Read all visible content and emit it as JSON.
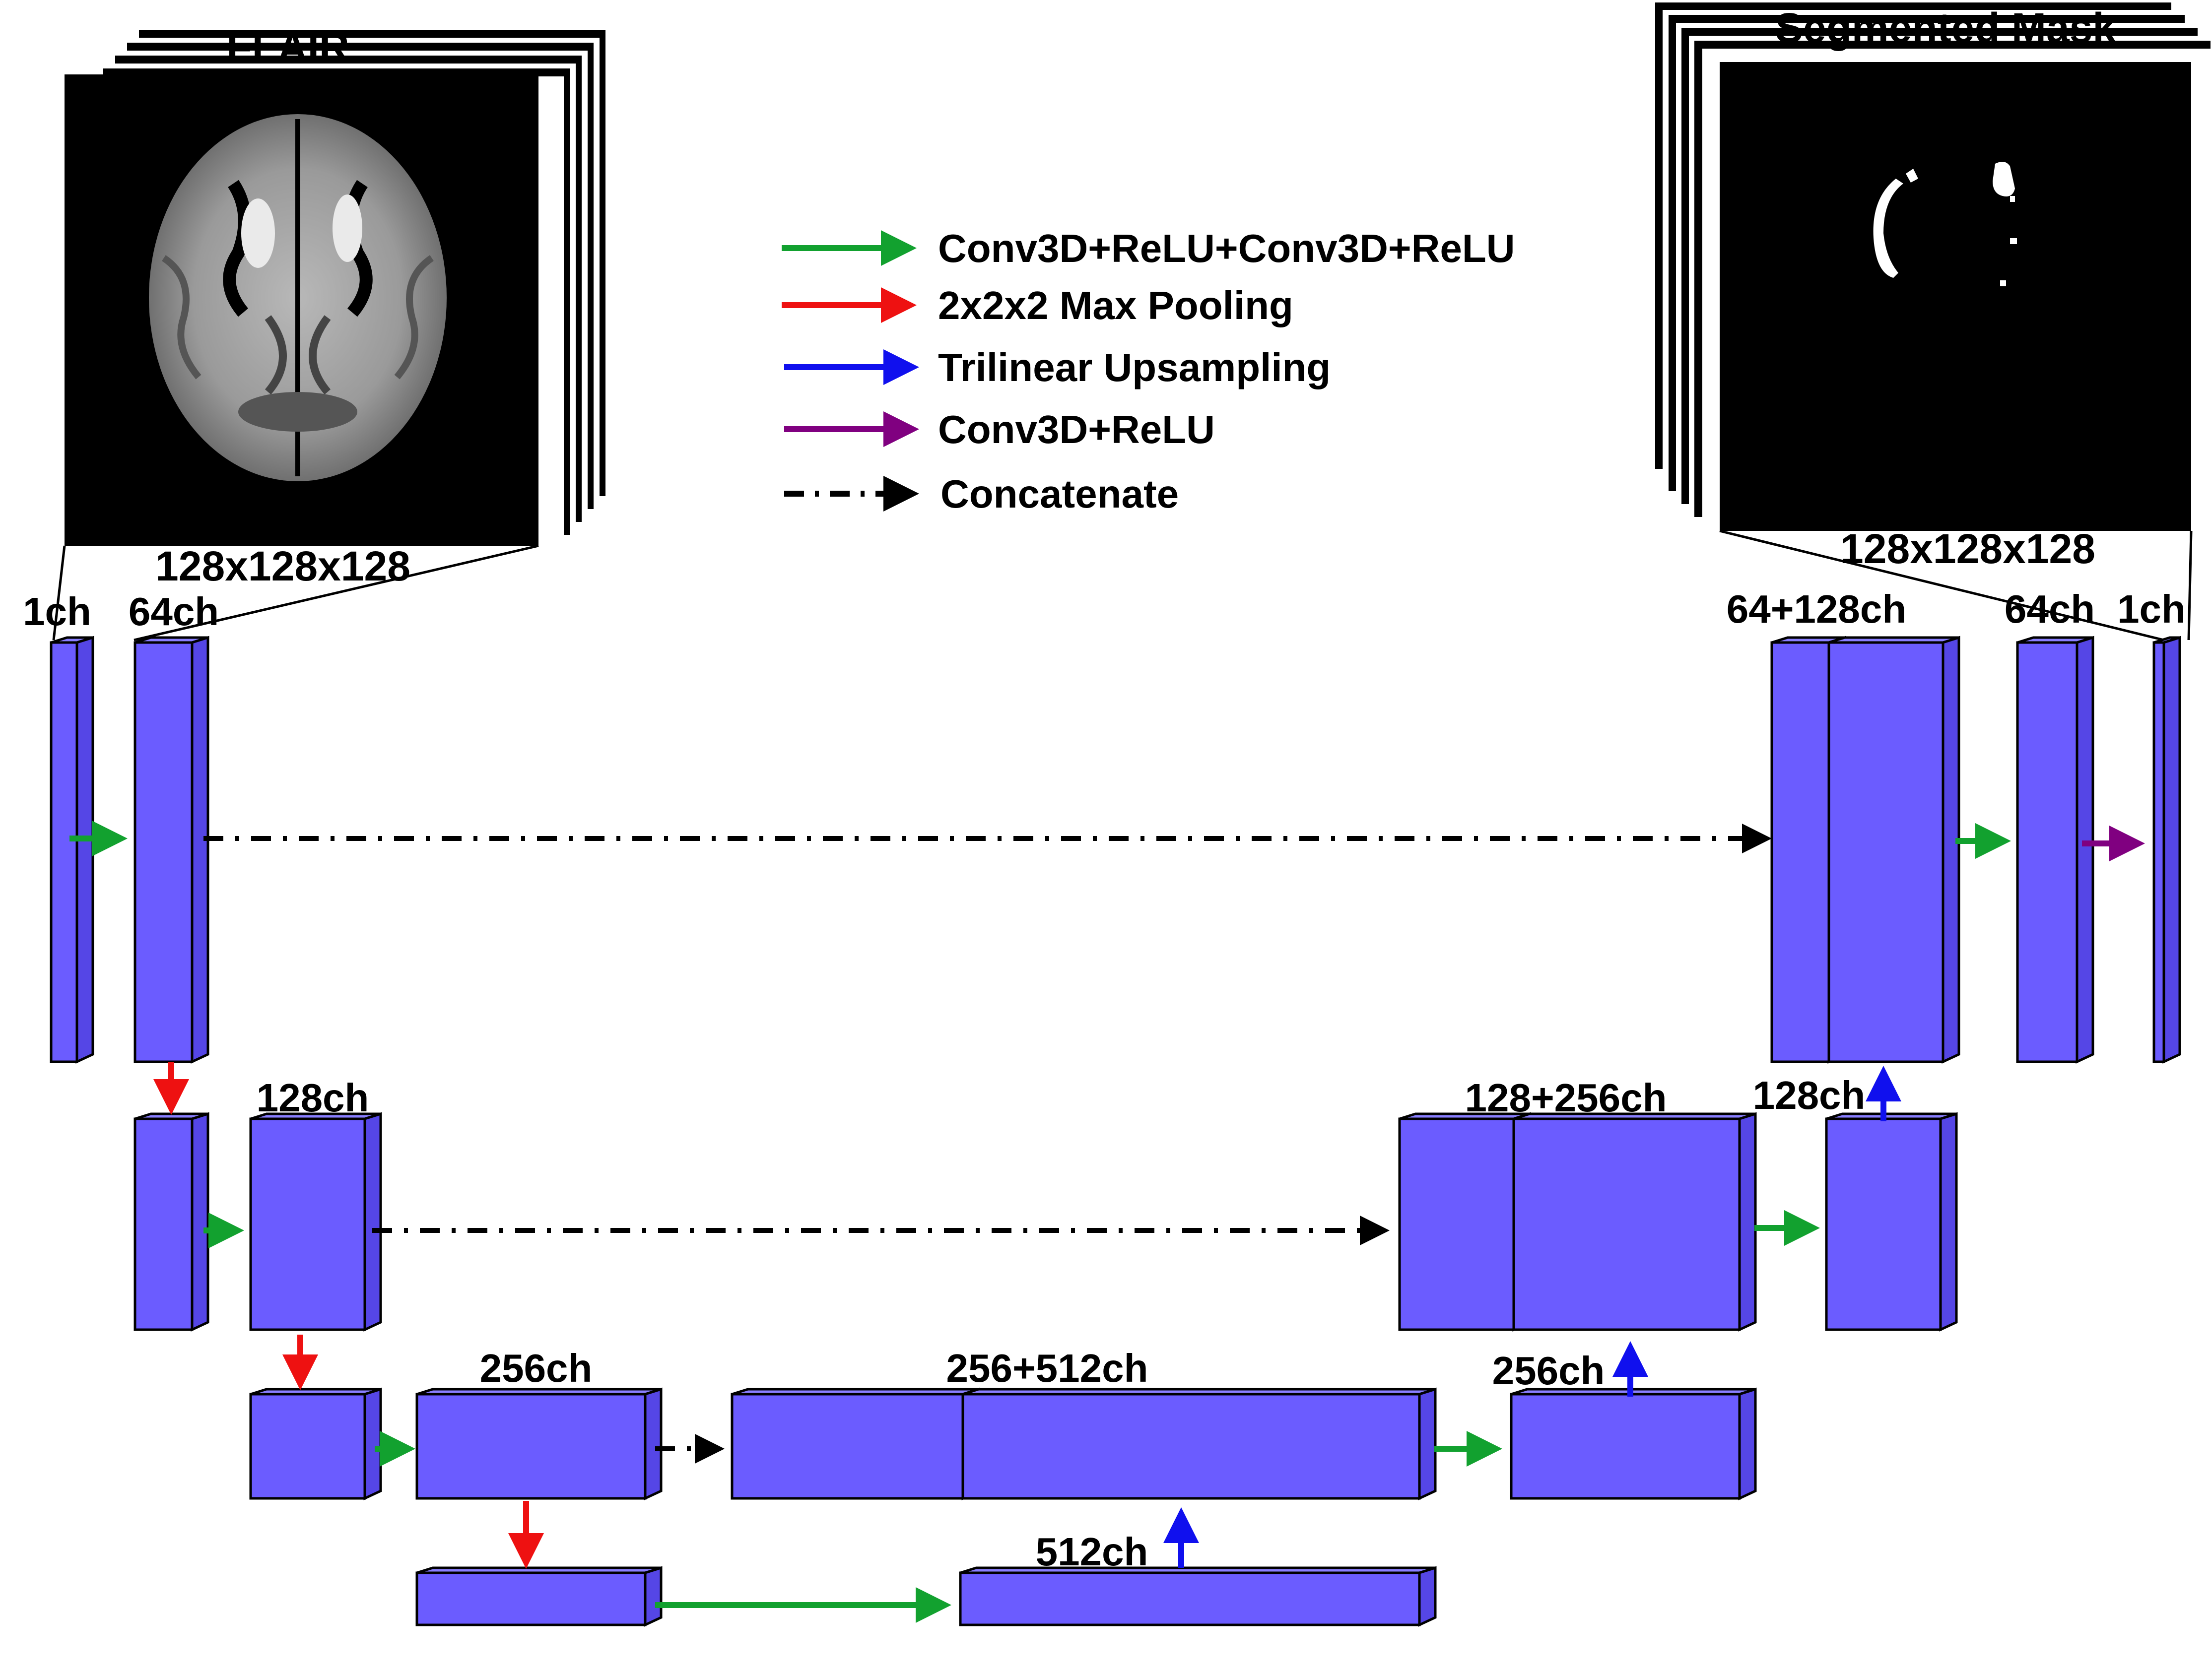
{
  "panels": {
    "input_title": "FLAIR",
    "input_size": "128x128x128",
    "output_title": "Segmented Mask",
    "output_size": "128x128x128"
  },
  "legend": {
    "conv_double": "Conv3D+ReLU+Conv3D+ReLU",
    "maxpool": "2x2x2 Max Pooling",
    "upsample": "Trilinear Upsampling",
    "conv_single": "Conv3D+ReLU",
    "concat": "Concatenate"
  },
  "channels": {
    "in_1": "1ch",
    "enc1": "64ch",
    "enc2": "128ch",
    "enc3": "256ch",
    "bottleneck": "512ch",
    "dec3_cat": "256+512ch",
    "dec3": "256ch",
    "dec2_cat": "128+256ch",
    "dec2": "128ch",
    "dec1_cat": "64+128ch",
    "dec1": "64ch",
    "out_1": "1ch"
  },
  "colors": {
    "block": "#6b5cff",
    "conv": "#12a12f",
    "pool": "#ee1111",
    "upsample": "#1010ee",
    "conv_single": "#800080",
    "concat": "#000000"
  }
}
